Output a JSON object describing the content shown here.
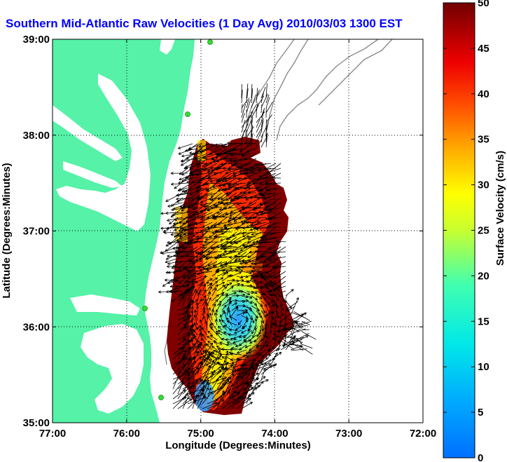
{
  "title": "Southern Mid-Atlantic Raw Velocities (1 Day Avg) 2010/03/03 1300 EST",
  "x_axis": {
    "label": "Longitude (Degrees:Minutes)",
    "ticks": [
      "77:00",
      "76:00",
      "75:00",
      "74:00",
      "73:00",
      "72:00"
    ]
  },
  "y_axis": {
    "label": "Latitude (Degrees:Minutes)",
    "ticks": [
      "39:00",
      "38:00",
      "37:00",
      "36:00",
      "35:00"
    ]
  },
  "colorbar": {
    "label": "Surface Velocity (cm/s)",
    "ticks": [
      "50",
      "45",
      "40",
      "35",
      "30",
      "25",
      "20",
      "15",
      "10",
      "5",
      "0"
    ],
    "min": 0,
    "max": 50
  },
  "colors": {
    "land": "#55f2a8",
    "water": "#ffffff",
    "title": "#0000ff",
    "station": "#33dd33",
    "bathymetry": "#8c8c8c"
  }
}
